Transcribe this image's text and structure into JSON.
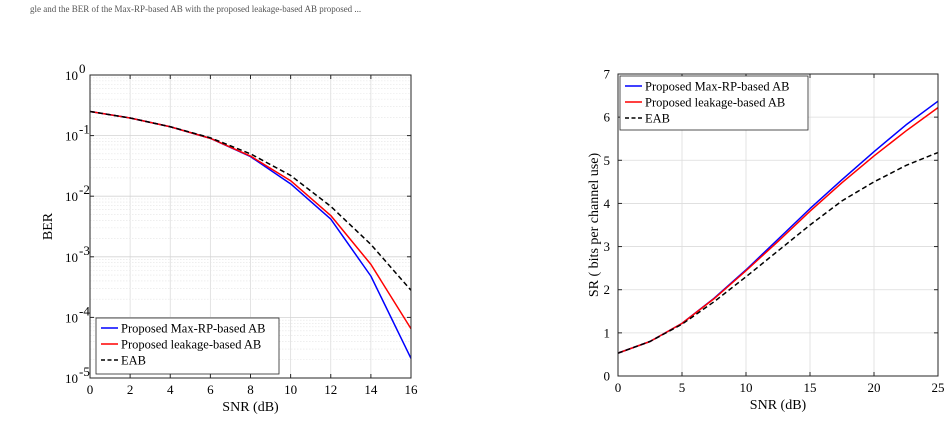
{
  "page": {
    "top_caption": "gle  and  the  BER  of  the  Max-RP-based  AB  with  the  proposed  leakage-based  AB  proposed  ..."
  },
  "chart_data": [
    {
      "type": "line",
      "title": "",
      "xlabel": "SNR (dB)",
      "ylabel": "BER",
      "y_scale": "log",
      "xlim": [
        0,
        16
      ],
      "ylim": [
        1e-05,
        1
      ],
      "x_ticks": [
        "0",
        "2",
        "4",
        "6",
        "8",
        "10",
        "12",
        "14",
        "16"
      ],
      "y_tick_bases": [
        "10",
        "10",
        "10",
        "10",
        "10",
        "10"
      ],
      "y_tick_exponents": [
        "-5",
        "-4",
        "-3",
        "-2",
        "-1",
        "0"
      ],
      "grid": true,
      "legend_position": "bottom-left",
      "x": [
        0,
        2,
        4,
        6,
        8,
        10,
        12,
        14,
        16
      ],
      "series": [
        {
          "name": "Proposed Max-RP-based AB",
          "color": "#0000ff",
          "dash": "solid",
          "values": [
            0.25,
            0.195,
            0.14,
            0.09,
            0.045,
            0.016,
            0.0042,
            0.00048,
            2.1e-05
          ]
        },
        {
          "name": "Proposed leakage-based AB",
          "color": "#ff0000",
          "dash": "solid",
          "values": [
            0.25,
            0.195,
            0.14,
            0.09,
            0.046,
            0.018,
            0.0048,
            0.00075,
            6.5e-05
          ]
        },
        {
          "name": "EAB",
          "color": "#000000",
          "dash": "dashed",
          "values": [
            0.25,
            0.195,
            0.14,
            0.092,
            0.05,
            0.022,
            0.0068,
            0.0016,
            0.00028
          ]
        }
      ]
    },
    {
      "type": "line",
      "title": "",
      "xlabel": "SNR (dB)",
      "ylabel": "SR ( bits per channel use)",
      "xlim": [
        0,
        25
      ],
      "ylim": [
        0,
        7
      ],
      "x_ticks": [
        "0",
        "5",
        "10",
        "15",
        "20",
        "25"
      ],
      "y_ticks": [
        "0",
        "1",
        "2",
        "3",
        "4",
        "5",
        "6",
        "7"
      ],
      "grid": true,
      "legend_position": "top-left",
      "x": [
        0,
        2.5,
        5,
        7.5,
        10,
        12.5,
        15,
        17.5,
        20,
        22.5,
        25
      ],
      "series": [
        {
          "name": "Proposed Max-RP-based AB",
          "color": "#0000ff",
          "dash": "solid",
          "values": [
            0.53,
            0.8,
            1.22,
            1.8,
            2.46,
            3.17,
            3.88,
            4.55,
            5.2,
            5.82,
            6.37
          ]
        },
        {
          "name": "Proposed leakage-based AB",
          "color": "#ff0000",
          "dash": "solid",
          "values": [
            0.53,
            0.8,
            1.22,
            1.79,
            2.44,
            3.12,
            3.82,
            4.48,
            5.1,
            5.68,
            6.22
          ]
        },
        {
          "name": "EAB",
          "color": "#000000",
          "dash": "dashed",
          "values": [
            0.53,
            0.8,
            1.2,
            1.72,
            2.3,
            2.9,
            3.5,
            4.06,
            4.5,
            4.88,
            5.18
          ]
        }
      ]
    }
  ]
}
